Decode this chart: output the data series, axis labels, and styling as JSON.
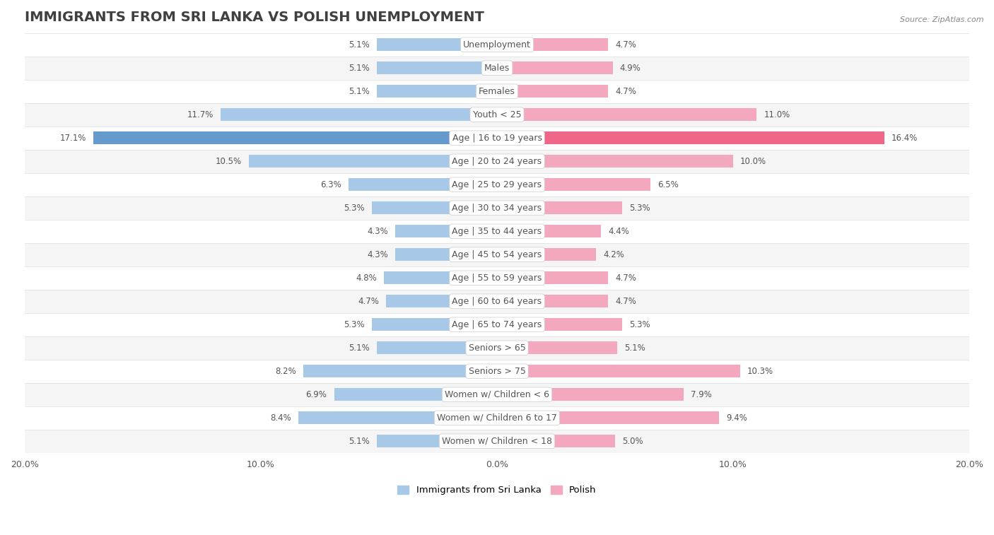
{
  "title": "IMMIGRANTS FROM SRI LANKA VS POLISH UNEMPLOYMENT",
  "source": "Source: ZipAtlas.com",
  "categories": [
    "Unemployment",
    "Males",
    "Females",
    "Youth < 25",
    "Age | 16 to 19 years",
    "Age | 20 to 24 years",
    "Age | 25 to 29 years",
    "Age | 30 to 34 years",
    "Age | 35 to 44 years",
    "Age | 45 to 54 years",
    "Age | 55 to 59 years",
    "Age | 60 to 64 years",
    "Age | 65 to 74 years",
    "Seniors > 65",
    "Seniors > 75",
    "Women w/ Children < 6",
    "Women w/ Children 6 to 17",
    "Women w/ Children < 18"
  ],
  "sri_lanka": [
    5.1,
    5.1,
    5.1,
    11.7,
    17.1,
    10.5,
    6.3,
    5.3,
    4.3,
    4.3,
    4.8,
    4.7,
    5.3,
    5.1,
    8.2,
    6.9,
    8.4,
    5.1
  ],
  "polish": [
    4.7,
    4.9,
    4.7,
    11.0,
    16.4,
    10.0,
    6.5,
    5.3,
    4.4,
    4.2,
    4.7,
    4.7,
    5.3,
    5.1,
    10.3,
    7.9,
    9.4,
    5.0
  ],
  "color_sri_lanka": "#a8c8e8",
  "color_polish": "#f4a8be",
  "color_sri_lanka_highlight": "#6699cc",
  "color_polish_highlight": "#ee6688",
  "background_color": "#ffffff",
  "row_color_odd": "#f5f5f5",
  "row_color_even": "#ffffff",
  "row_separator": "#dddddd",
  "axis_max": 20.0,
  "title_fontsize": 14,
  "label_fontsize": 9,
  "value_fontsize": 8.5,
  "source_fontsize": 8
}
